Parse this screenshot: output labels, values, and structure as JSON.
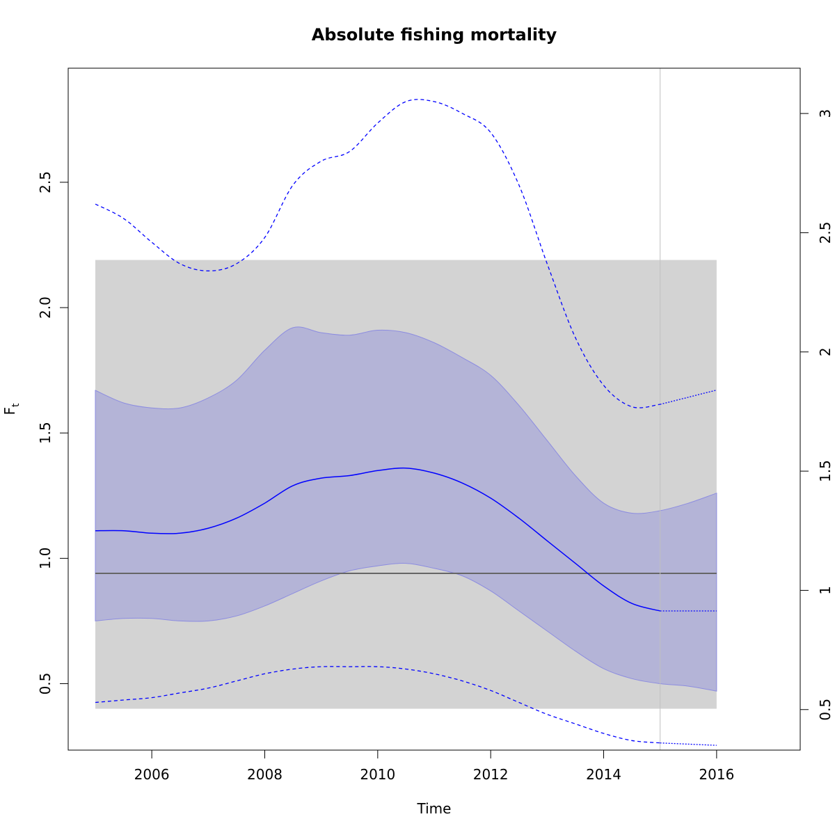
{
  "chart_data": {
    "type": "line",
    "title": "Absolute fishing mortality",
    "xlabel": "Time",
    "ylabel_main": "F",
    "ylabel_sub": "t",
    "xlim": [
      2004.52,
      2017.48
    ],
    "ylim_left": [
      0.235,
      2.955
    ],
    "ylim_right": [
      0.33,
      3.19
    ],
    "x_ticks": [
      2006,
      2008,
      2010,
      2012,
      2014,
      2016
    ],
    "x_tick_labels": [
      "2006",
      "2008",
      "2010",
      "2012",
      "2014",
      "2016"
    ],
    "y_left_ticks": [
      0.5,
      1.0,
      1.5,
      2.0,
      2.5
    ],
    "y_left_tick_labels": [
      "0.5",
      "1.0",
      "1.5",
      "2.0",
      "2.5"
    ],
    "y_right_ticks": [
      0.5,
      1,
      1.5,
      2,
      2.5,
      3
    ],
    "y_right_tick_labels": [
      "0.5",
      "1",
      "1.5",
      "2",
      "2.5",
      "3"
    ],
    "grey_band": {
      "x": [
        2005,
        2016
      ],
      "y": [
        0.4,
        2.19
      ]
    },
    "reference_line": 0.94,
    "vertical_line_x": 2015,
    "colors": {
      "estimate": "#0000ff",
      "ci_fill": "#a7a7d9",
      "ci_edge": "#8c8ce0",
      "grey_band": "#d3d3d3",
      "reference_line": "#666666",
      "vertical_line": "#c0c0c0"
    },
    "series": [
      {
        "role": "estimate",
        "x": [
          2005.0,
          2005.5,
          2006.0,
          2006.5,
          2007.0,
          2007.5,
          2008.0,
          2008.5,
          2009.0,
          2009.5,
          2010.0,
          2010.5,
          2011.0,
          2011.5,
          2012.0,
          2012.5,
          2013.0,
          2013.5,
          2014.0,
          2014.5,
          2015.0
        ],
        "y": [
          1.11,
          1.11,
          1.1,
          1.1,
          1.12,
          1.16,
          1.22,
          1.29,
          1.32,
          1.33,
          1.35,
          1.36,
          1.34,
          1.3,
          1.24,
          1.16,
          1.07,
          0.98,
          0.89,
          0.82,
          0.79
        ]
      },
      {
        "role": "estimate_forecast",
        "x": [
          2015.0,
          2016.0
        ],
        "y": [
          0.79,
          0.79
        ]
      },
      {
        "role": "ci_upper",
        "x": [
          2005.0,
          2005.5,
          2006.0,
          2006.5,
          2007.0,
          2007.5,
          2008.0,
          2008.5,
          2009.0,
          2009.5,
          2010.0,
          2010.5,
          2011.0,
          2011.5,
          2012.0,
          2012.5,
          2013.0,
          2013.5,
          2014.0,
          2014.5,
          2015.0,
          2015.5,
          2016.0
        ],
        "y": [
          1.67,
          1.62,
          1.6,
          1.6,
          1.64,
          1.71,
          1.83,
          1.92,
          1.9,
          1.89,
          1.91,
          1.9,
          1.86,
          1.8,
          1.73,
          1.61,
          1.47,
          1.33,
          1.22,
          1.18,
          1.19,
          1.22,
          1.26
        ]
      },
      {
        "role": "ci_lower",
        "x": [
          2005.0,
          2005.5,
          2006.0,
          2006.5,
          2007.0,
          2007.5,
          2008.0,
          2008.5,
          2009.0,
          2009.5,
          2010.0,
          2010.5,
          2011.0,
          2011.5,
          2012.0,
          2012.5,
          2013.0,
          2013.5,
          2014.0,
          2014.5,
          2015.0,
          2015.5,
          2016.0
        ],
        "y": [
          0.75,
          0.76,
          0.76,
          0.75,
          0.75,
          0.77,
          0.81,
          0.86,
          0.91,
          0.95,
          0.97,
          0.98,
          0.96,
          0.93,
          0.87,
          0.79,
          0.71,
          0.63,
          0.56,
          0.52,
          0.5,
          0.49,
          0.47
        ]
      },
      {
        "role": "relative_upper",
        "axis": "right",
        "x": [
          2005.0,
          2005.5,
          2006.0,
          2006.5,
          2007.0,
          2007.5,
          2008.0,
          2008.5,
          2009.0,
          2009.5,
          2010.0,
          2010.5,
          2011.0,
          2011.5,
          2012.0,
          2012.5,
          2013.0,
          2013.5,
          2014.0,
          2014.5,
          2015.0,
          2015.5,
          2016.0
        ],
        "y": [
          2.62,
          2.56,
          2.46,
          2.37,
          2.34,
          2.37,
          2.48,
          2.7,
          2.8,
          2.84,
          2.96,
          3.05,
          3.05,
          3.0,
          2.92,
          2.7,
          2.37,
          2.06,
          1.86,
          1.77,
          1.78,
          1.81,
          1.84
        ]
      },
      {
        "role": "relative_lower",
        "axis": "right",
        "x": [
          2005.0,
          2005.5,
          2006.0,
          2006.5,
          2007.0,
          2007.5,
          2008.0,
          2008.5,
          2009.0,
          2009.5,
          2010.0,
          2010.5,
          2011.0,
          2011.5,
          2012.0,
          2012.5,
          2013.0,
          2013.5,
          2014.0,
          2014.5,
          2015.0,
          2015.5,
          2016.0
        ],
        "y": [
          0.53,
          0.54,
          0.55,
          0.57,
          0.59,
          0.62,
          0.65,
          0.67,
          0.68,
          0.68,
          0.68,
          0.67,
          0.65,
          0.62,
          0.58,
          0.53,
          0.48,
          0.44,
          0.4,
          0.37,
          0.36,
          0.355,
          0.35
        ]
      }
    ]
  }
}
